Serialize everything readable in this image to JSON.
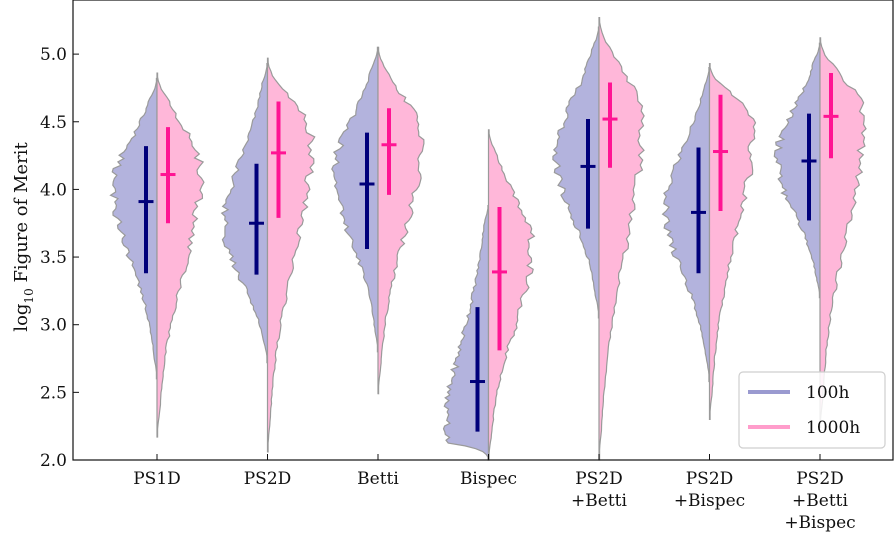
{
  "chart_data": {
    "type": "violin",
    "ylabel": "log10 Figure of Merit",
    "ylabel_main": "log",
    "ylabel_sub": "10",
    "ylabel_rest": " Figure of Merit",
    "ylim": [
      2.0,
      5.4
    ],
    "yticks": [
      2.0,
      2.5,
      3.0,
      3.5,
      4.0,
      4.5,
      5.0
    ],
    "ytick_labels": [
      "2.0",
      "2.5",
      "3.0",
      "3.5",
      "4.0",
      "4.5",
      "5.0"
    ],
    "categories": [
      {
        "label_lines": [
          "PS1D"
        ]
      },
      {
        "label_lines": [
          "PS2D"
        ]
      },
      {
        "label_lines": [
          "Betti"
        ]
      },
      {
        "label_lines": [
          "Bispec"
        ]
      },
      {
        "label_lines": [
          "PS2D",
          "+Betti"
        ]
      },
      {
        "label_lines": [
          "PS2D",
          "+Bispec"
        ]
      },
      {
        "label_lines": [
          "PS2D",
          "+Betti",
          "+Bispec"
        ]
      }
    ],
    "series": [
      {
        "name": "100h",
        "side": "left",
        "fill": "#b3b3dd",
        "line_color": "#00007a",
        "legend_color": "#9a9ad0",
        "stats": [
          {
            "mean": 3.91,
            "lo": 3.38,
            "hi": 4.32,
            "min": 2.6,
            "max": 4.82,
            "mode": 4.02
          },
          {
            "mean": 3.75,
            "lo": 3.37,
            "hi": 4.19,
            "min": 2.72,
            "max": 4.93,
            "mode": 3.7
          },
          {
            "mean": 4.04,
            "lo": 3.56,
            "hi": 4.42,
            "min": 2.8,
            "max": 5.05,
            "mode": 4.12
          },
          {
            "mean": 2.58,
            "lo": 2.21,
            "hi": 3.13,
            "min": 2.0,
            "max": 3.88,
            "mode": 2.15
          },
          {
            "mean": 4.17,
            "lo": 3.71,
            "hi": 4.52,
            "min": 3.05,
            "max": 5.2,
            "mode": 4.26
          },
          {
            "mean": 3.83,
            "lo": 3.38,
            "hi": 4.31,
            "min": 2.58,
            "max": 4.9,
            "mode": 3.86
          },
          {
            "mean": 4.21,
            "lo": 3.77,
            "hi": 4.56,
            "min": 3.2,
            "max": 5.08,
            "mode": 4.22
          }
        ]
      },
      {
        "name": "1000h",
        "side": "right",
        "fill": "#ffb7d9",
        "line_color": "#ff1493",
        "legend_color": "#ff9dcb",
        "stats": [
          {
            "mean": 4.11,
            "lo": 3.75,
            "hi": 4.46,
            "min": 2.17,
            "max": 4.86,
            "mode": 4.15
          },
          {
            "mean": 4.27,
            "lo": 3.79,
            "hi": 4.65,
            "min": 2.06,
            "max": 4.97,
            "mode": 4.38
          },
          {
            "mean": 4.33,
            "lo": 3.96,
            "hi": 4.6,
            "min": 2.49,
            "max": 5.05,
            "mode": 4.38
          },
          {
            "mean": 3.39,
            "lo": 2.81,
            "hi": 3.87,
            "min": 2.0,
            "max": 4.44,
            "mode": 3.58
          },
          {
            "mean": 4.52,
            "lo": 4.16,
            "hi": 4.79,
            "min": 2.0,
            "max": 5.27,
            "mode": 4.52
          },
          {
            "mean": 4.28,
            "lo": 3.84,
            "hi": 4.7,
            "min": 2.3,
            "max": 4.93,
            "mode": 4.48
          },
          {
            "mean": 4.54,
            "lo": 4.23,
            "hi": 4.86,
            "min": 2.24,
            "max": 5.12,
            "mode": 4.55
          }
        ]
      }
    ],
    "legend_position": "lower-right"
  }
}
